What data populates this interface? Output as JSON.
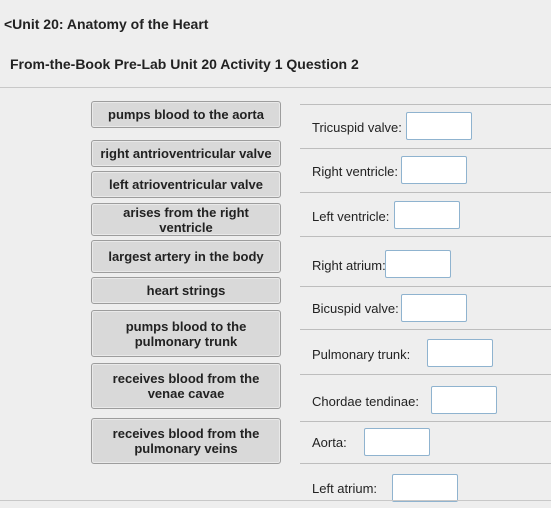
{
  "header": {
    "back_label": "<Unit 20: Anatomy of the Heart",
    "question_title": "From-the-Book Pre-Lab Unit 20 Activity 1 Question 2"
  },
  "tiles": [
    {
      "l1": "pumps blood to the aorta",
      "l2": ""
    },
    {
      "l1": "right antrioventricular valve",
      "l2": ""
    },
    {
      "l1": "left atrioventricular valve",
      "l2": ""
    },
    {
      "l1": "arises from the right ventricle",
      "l2": ""
    },
    {
      "l1": "largest artery in the body",
      "l2": ""
    },
    {
      "l1": "heart strings",
      "l2": ""
    },
    {
      "l1": "pumps blood to the",
      "l2": "pulmonary trunk"
    },
    {
      "l1": "receives blood from the",
      "l2": "venae cavae"
    },
    {
      "l1": "receives blood from the",
      "l2": "pulmonary veins"
    }
  ],
  "targets": [
    {
      "label": "Tricuspid valve:"
    },
    {
      "label": "Right ventricle:"
    },
    {
      "label": "Left ventricle:"
    },
    {
      "label": "Right atrium:"
    },
    {
      "label": "Bicuspid valve:"
    },
    {
      "label": "Pulmonary trunk:"
    },
    {
      "label": "Chordae tendinae:"
    },
    {
      "label": "Aorta:"
    },
    {
      "label": "Left atrium:"
    }
  ]
}
